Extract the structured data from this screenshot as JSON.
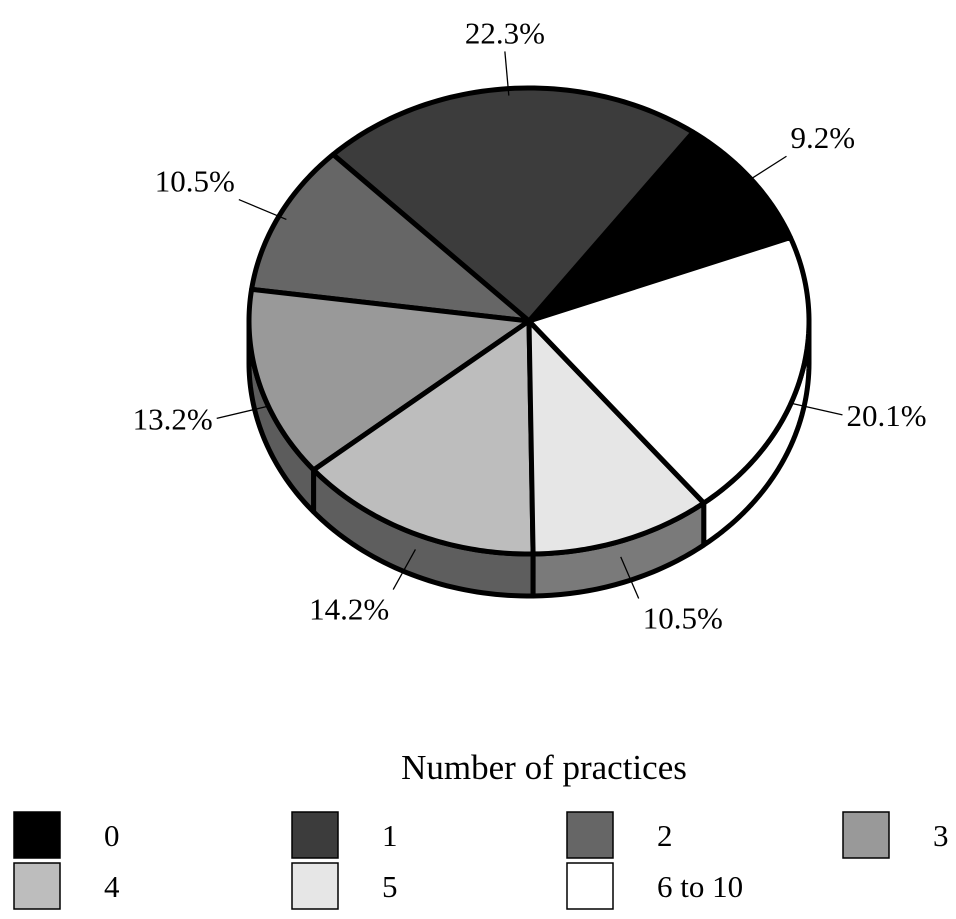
{
  "chart_data": {
    "type": "pie",
    "style": "3d-tilted",
    "categories": [
      "0",
      "1",
      "2",
      "3",
      "4",
      "5",
      "6 to 10"
    ],
    "values": [
      9.2,
      22.3,
      10.5,
      13.2,
      14.2,
      10.5,
      20.1
    ],
    "labels": [
      "9.2%",
      "22.3%",
      "10.5%",
      "13.2%",
      "14.2%",
      "10.5%",
      "20.1%"
    ],
    "colors": [
      "#000000",
      "#3c3c3c",
      "#666666",
      "#999999",
      "#bdbdbd",
      "#e6e6e6",
      "#ffffff"
    ],
    "side_colors": [
      "#000000",
      "#2a2a2a",
      "#555555",
      "#5c5c5c",
      "#5e5e5e",
      "#7a7a7a",
      "#ffffff"
    ],
    "legend": {
      "title": "Number of practices",
      "placement": "bottom",
      "columns": 4
    }
  }
}
